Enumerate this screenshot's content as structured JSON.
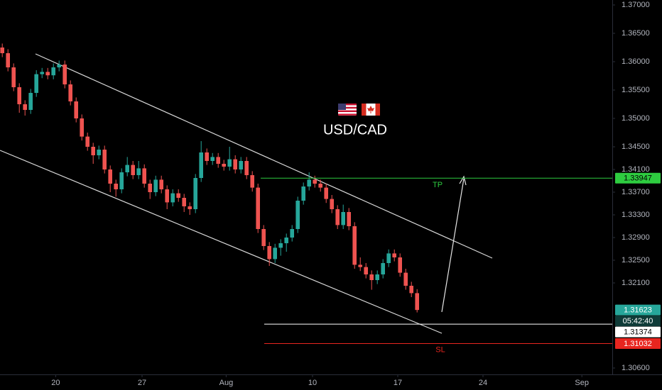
{
  "chart_data": {
    "type": "candlestick",
    "title": "USD/CAD",
    "up_color": "#26a69a",
    "down_color": "#ef5350",
    "ohlc": [
      [
        1.3625,
        1.3632,
        1.3608,
        1.3615
      ],
      [
        1.3615,
        1.3622,
        1.3583,
        1.359
      ],
      [
        1.359,
        1.3597,
        1.3548,
        1.3555
      ],
      [
        1.3555,
        1.3562,
        1.351,
        1.3525
      ],
      [
        1.3525,
        1.3532,
        1.3505,
        1.3515
      ],
      [
        1.3515,
        1.3552,
        1.3508,
        1.3545
      ],
      [
        1.3545,
        1.3585,
        1.3538,
        1.3578
      ],
      [
        1.3578,
        1.3589,
        1.3571,
        1.3582
      ],
      [
        1.3582,
        1.3589,
        1.3569,
        1.3576
      ],
      [
        1.3576,
        1.3597,
        1.3569,
        1.359
      ],
      [
        1.359,
        1.3602,
        1.3583,
        1.3595
      ],
      [
        1.3595,
        1.3602,
        1.3553,
        1.356
      ],
      [
        1.356,
        1.3567,
        1.3523,
        1.353
      ],
      [
        1.353,
        1.3537,
        1.3493,
        1.35
      ],
      [
        1.35,
        1.3507,
        1.3461,
        1.3468
      ],
      [
        1.3468,
        1.3475,
        1.3443,
        1.345
      ],
      [
        1.345,
        1.3457,
        1.342,
        1.3435
      ],
      [
        1.3435,
        1.3452,
        1.3428,
        1.3445
      ],
      [
        1.3445,
        1.3452,
        1.3403,
        1.341
      ],
      [
        1.341,
        1.3417,
        1.337,
        1.3385
      ],
      [
        1.3385,
        1.3392,
        1.3362,
        1.3375
      ],
      [
        1.3375,
        1.3412,
        1.3368,
        1.3405
      ],
      [
        1.3405,
        1.3432,
        1.3398,
        1.3418
      ],
      [
        1.3418,
        1.3425,
        1.3393,
        1.34
      ],
      [
        1.34,
        1.3425,
        1.3393,
        1.3412
      ],
      [
        1.3412,
        1.3419,
        1.3378,
        1.3385
      ],
      [
        1.3385,
        1.3392,
        1.3358,
        1.337
      ],
      [
        1.337,
        1.3399,
        1.3363,
        1.3392
      ],
      [
        1.3392,
        1.3399,
        1.3368,
        1.3375
      ],
      [
        1.3375,
        1.3382,
        1.334,
        1.3352
      ],
      [
        1.3352,
        1.3375,
        1.3345,
        1.3368
      ],
      [
        1.3368,
        1.3375,
        1.3353,
        1.336
      ],
      [
        1.336,
        1.3367,
        1.3335,
        1.3345
      ],
      [
        1.3345,
        1.3352,
        1.333,
        1.334
      ],
      [
        1.334,
        1.3402,
        1.3333,
        1.3395
      ],
      [
        1.3395,
        1.346,
        1.3388,
        1.344
      ],
      [
        1.344,
        1.3447,
        1.3418,
        1.3425
      ],
      [
        1.3425,
        1.3439,
        1.3418,
        1.3432
      ],
      [
        1.3432,
        1.3439,
        1.3413,
        1.342
      ],
      [
        1.342,
        1.3427,
        1.3408,
        1.3415
      ],
      [
        1.3415,
        1.345,
        1.3408,
        1.3428
      ],
      [
        1.3428,
        1.3435,
        1.3403,
        1.341
      ],
      [
        1.341,
        1.3432,
        1.3403,
        1.3425
      ],
      [
        1.3425,
        1.3432,
        1.3393,
        1.34
      ],
      [
        1.34,
        1.3407,
        1.3371,
        1.3378
      ],
      [
        1.3378,
        1.3385,
        1.3298,
        1.3305
      ],
      [
        1.3305,
        1.3312,
        1.3268,
        1.3275
      ],
      [
        1.3275,
        1.3282,
        1.324,
        1.3252
      ],
      [
        1.3252,
        1.3279,
        1.3245,
        1.3272
      ],
      [
        1.3272,
        1.3287,
        1.3258,
        1.328
      ],
      [
        1.328,
        1.3297,
        1.3265,
        1.329
      ],
      [
        1.329,
        1.3312,
        1.3283,
        1.3305
      ],
      [
        1.3305,
        1.3362,
        1.3298,
        1.3355
      ],
      [
        1.3355,
        1.3387,
        1.3348,
        1.338
      ],
      [
        1.338,
        1.3405,
        1.3373,
        1.3392
      ],
      [
        1.3392,
        1.3399,
        1.3378,
        1.3385
      ],
      [
        1.3385,
        1.3392,
        1.3371,
        1.3378
      ],
      [
        1.3378,
        1.3385,
        1.3351,
        1.3358
      ],
      [
        1.3358,
        1.3365,
        1.3333,
        1.334
      ],
      [
        1.334,
        1.3347,
        1.3305,
        1.3312
      ],
      [
        1.3312,
        1.3348,
        1.3305,
        1.3335
      ],
      [
        1.3335,
        1.3342,
        1.3303,
        1.331
      ],
      [
        1.331,
        1.3317,
        1.3235,
        1.3242
      ],
      [
        1.3242,
        1.3255,
        1.3231,
        1.3238
      ],
      [
        1.3238,
        1.3245,
        1.3218,
        1.3225
      ],
      [
        1.3225,
        1.3232,
        1.3198,
        1.3215
      ],
      [
        1.3215,
        1.3232,
        1.3208,
        1.3225
      ],
      [
        1.3225,
        1.3252,
        1.3218,
        1.3245
      ],
      [
        1.3245,
        1.3269,
        1.3238,
        1.3262
      ],
      [
        1.3262,
        1.3269,
        1.3248,
        1.3255
      ],
      [
        1.3255,
        1.3262,
        1.3221,
        1.3228
      ],
      [
        1.3228,
        1.3235,
        1.3198,
        1.3205
      ],
      [
        1.3205,
        1.3212,
        1.3185,
        1.3192
      ],
      [
        1.3192,
        1.3199,
        1.3158,
        1.31623
      ]
    ],
    "last_price_label": "1.31623",
    "countdown": "05:42:40",
    "xlim": [
      -0.4,
      107.35
    ],
    "xticks": [
      {
        "value": 9.4,
        "label": "20"
      },
      {
        "value": 24.6,
        "label": "27"
      },
      {
        "value": 39.4,
        "label": "Aug"
      },
      {
        "value": 54.6,
        "label": "10"
      },
      {
        "value": 69.6,
        "label": "17"
      },
      {
        "value": 84.6,
        "label": "24"
      },
      {
        "value": 102,
        "label": "Sep"
      }
    ],
    "ylim": [
      1.304875,
      1.370875
    ],
    "yticks": [
      {
        "value": 1.37,
        "label": "1.37000"
      },
      {
        "value": 1.365,
        "label": "1.36500"
      },
      {
        "value": 1.36,
        "label": "1.36000"
      },
      {
        "value": 1.355,
        "label": "1.35500"
      },
      {
        "value": 1.35,
        "label": "1.35000"
      },
      {
        "value": 1.345,
        "label": "1.34500"
      },
      {
        "value": 1.341,
        "label": "1.34100"
      },
      {
        "value": 1.337,
        "label": "1.33700"
      },
      {
        "value": 1.333,
        "label": "1.33300"
      },
      {
        "value": 1.329,
        "label": "1.32900"
      },
      {
        "value": 1.325,
        "label": "1.32500"
      },
      {
        "value": 1.321,
        "label": "1.32100"
      },
      {
        "value": 1.306,
        "label": "1.30600"
      }
    ],
    "levels": [
      {
        "name": "TP",
        "value": 1.33947,
        "value_label": "1.33947",
        "color": "#2ecc40"
      },
      {
        "value": 1.31374,
        "value_label": "1.31374",
        "color": "#ffffff"
      },
      {
        "name": "SL",
        "value": 1.31032,
        "value_label": "1.31032",
        "color": "#e8251f"
      }
    ]
  }
}
